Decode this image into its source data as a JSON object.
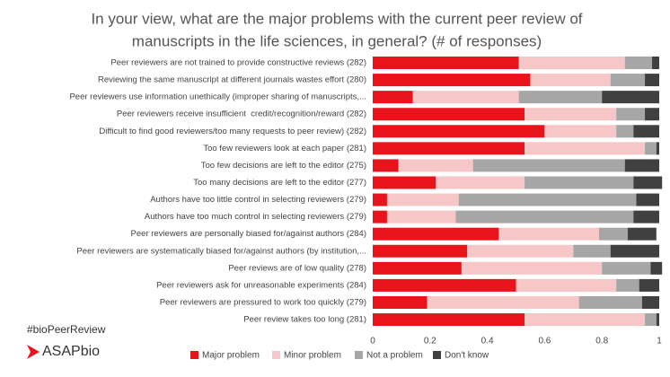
{
  "chart_data": {
    "type": "stacked-barh",
    "title": [
      "In your view, what are the major problems with the current peer review of",
      "manuscripts in the life sciences, in general? (# of responses)"
    ],
    "categories": [
      "Peer reviewers are not trained to provide constructive reviews (282)",
      "Reviewing the same manuscript at different journals wastes effort (280)",
      "Peer reviewers use information unethically (improper sharing of manuscripts,...",
      "Peer reviewers receive insufficient  credit/recognition/reward (282)",
      "Difficult to find good reviewers/too many requests to peer review) (282)",
      "Too few reviewers look at each paper (281)",
      "Too few decisions are left to the editor (275)",
      "Too many decisions are left to the editor (277)",
      "Authors have too little control in selecting reviewers (279)",
      "Authors have too much control in selecting reviewers (279)",
      "Peer reviewers are personally biased for/against authors (284)",
      "Peer reviewers are systematically biased for/against authors (by institution,...",
      "Peer reviews are of low quality (278)",
      "Peer reviewers ask for unreasonable experiments (284)",
      "Peer reviewers are pressured to work too quickly (279)",
      "Peer review takes too long (281)"
    ],
    "series": [
      {
        "name": "Major problem",
        "color": "#e8141c",
        "values": [
          0.51,
          0.55,
          0.14,
          0.53,
          0.6,
          0.53,
          0.09,
          0.22,
          0.05,
          0.05,
          0.44,
          0.33,
          0.31,
          0.5,
          0.19,
          0.53
        ]
      },
      {
        "name": "Minor problem",
        "color": "#f7c6c7",
        "values": [
          0.37,
          0.28,
          0.37,
          0.32,
          0.25,
          0.42,
          0.26,
          0.31,
          0.25,
          0.24,
          0.35,
          0.37,
          0.49,
          0.35,
          0.53,
          0.42
        ]
      },
      {
        "name": "Not a problem",
        "color": "#a6a6a6",
        "values": [
          0.095,
          0.12,
          0.29,
          0.1,
          0.06,
          0.04,
          0.53,
          0.38,
          0.62,
          0.62,
          0.1,
          0.13,
          0.17,
          0.08,
          0.22,
          0.04
        ]
      },
      {
        "name": "Don't know",
        "color": "#404040",
        "values": [
          0.025,
          0.05,
          0.2,
          0.05,
          0.09,
          0.01,
          0.12,
          0.1,
          0.08,
          0.09,
          0.1,
          0.17,
          0.04,
          0.07,
          0.06,
          0.01
        ]
      }
    ],
    "xlim": [
      0,
      1
    ],
    "xticks": [
      0,
      0.2,
      0.4,
      0.6,
      0.8,
      1
    ],
    "legend": "bottom"
  },
  "branding": {
    "hashtag": "#bioPeerReview",
    "logo": "ASAPbio"
  }
}
